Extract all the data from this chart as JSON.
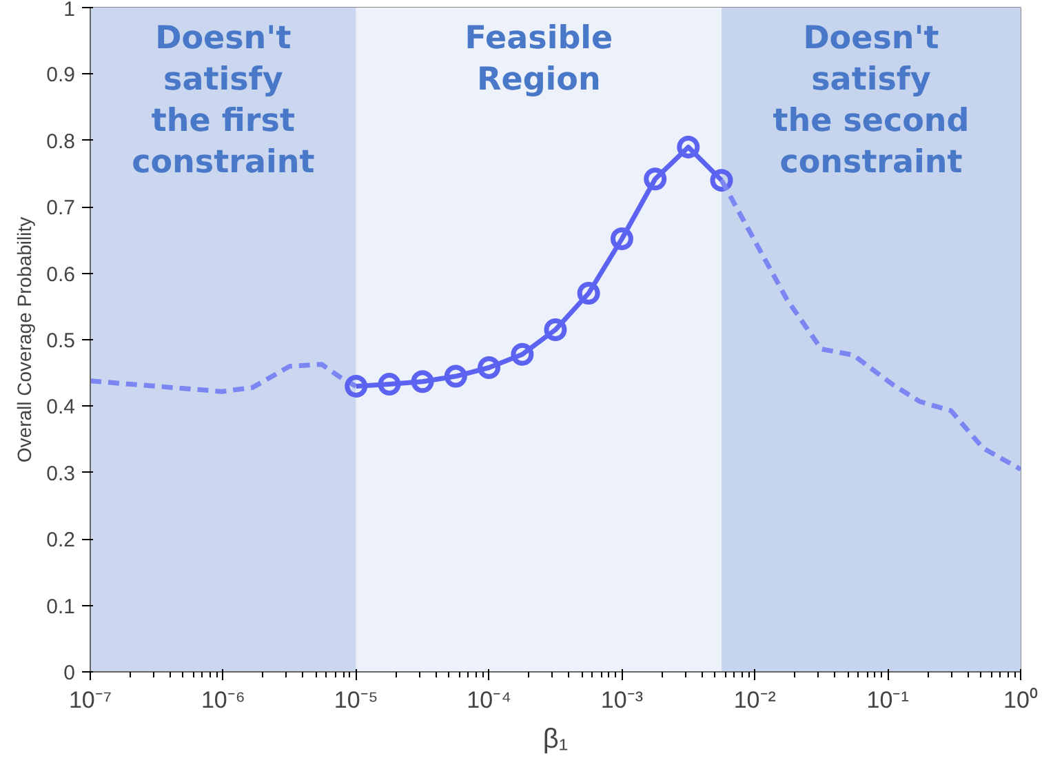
{
  "chart_data": {
    "type": "line",
    "xlabel": "β₁",
    "ylabel": "Overall Coverage Probability",
    "log": "x",
    "xlim": [
      1e-07,
      1
    ],
    "xticks": [
      {
        "value": 1e-07,
        "label": "10⁻⁷"
      },
      {
        "value": 1e-06,
        "label": "10⁻⁶"
      },
      {
        "value": 1e-05,
        "label": "10⁻⁵"
      },
      {
        "value": 0.0001,
        "label": "10⁻⁴"
      },
      {
        "value": 0.001,
        "label": "10⁻³"
      },
      {
        "value": 0.01,
        "label": "10⁻²"
      },
      {
        "value": 0.1,
        "label": "10⁻¹"
      },
      {
        "value": 1,
        "label": "10⁰"
      }
    ],
    "ylim": [
      0,
      1
    ],
    "yticks": [
      0,
      0.1,
      0.2,
      0.3,
      0.4,
      0.5,
      0.6,
      0.7,
      0.8,
      0.9,
      1
    ],
    "grid": false,
    "series": [
      {
        "color": "#7b86f2",
        "line_style": "dashed",
        "marker": "none",
        "x": [
          1e-07,
          9.8e-07,
          1.66e-06,
          3.16e-06,
          5.5e-06,
          7.8e-06,
          1e-05
        ],
        "values": [
          0.438,
          0.422,
          0.428,
          0.46,
          0.463,
          0.442,
          0.43
        ]
      },
      {
        "color": "#5b63f0",
        "line_style": "solid",
        "marker": "circle",
        "x": [
          1e-05,
          1.78e-05,
          3.16e-05,
          5.62e-05,
          0.0001,
          0.000178,
          0.000316,
          0.000562,
          0.001,
          0.00178,
          0.00316,
          0.00562
        ],
        "values": [
          0.43,
          0.433,
          0.437,
          0.445,
          0.458,
          0.478,
          0.515,
          0.57,
          0.652,
          0.742,
          0.79,
          0.74
        ]
      },
      {
        "color": "#7b86f2",
        "line_style": "dashed",
        "marker": "none",
        "x": [
          0.00562,
          0.0174,
          0.0316,
          0.055,
          0.11,
          0.174,
          0.3,
          0.52,
          1
        ],
        "values": [
          0.74,
          0.561,
          0.486,
          0.477,
          0.432,
          0.407,
          0.393,
          0.337,
          0.305
        ]
      }
    ],
    "bands": [
      {
        "axis": "x",
        "from": 1e-07,
        "to": 1e-05,
        "label": "Doesn't\nsatisfy\nthe first\nconstraint",
        "color": "#cad7ee"
      },
      {
        "axis": "x",
        "from": 1e-05,
        "to": 0.00562,
        "label": "Feasible\nRegion",
        "color": "#edf1fa"
      },
      {
        "axis": "x",
        "from": 0.00562,
        "to": 1,
        "label": "Doesn't\nsatisfy\nthe second\nconstraint",
        "color": "#c6d5ed"
      }
    ]
  }
}
